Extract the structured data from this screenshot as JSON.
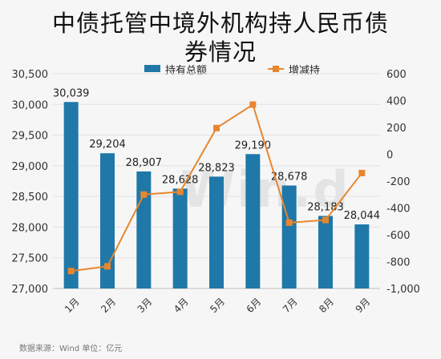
{
  "title_line1": "中债托管中境外机构持人民币债",
  "title_line2": "券情况",
  "source_text": "数据来源：Wind   单位：亿元",
  "watermark": "Win.d",
  "colors": {
    "bar": "#1f78a8",
    "line": "#e8862e",
    "grid": "#e2e2e2",
    "text": "#333333"
  },
  "chart_data": {
    "type": "bar+line",
    "categories": [
      "1月",
      "2月",
      "3月",
      "4月",
      "5月",
      "6月",
      "7月",
      "8月",
      "9月"
    ],
    "series": [
      {
        "name": "持有总额",
        "type": "bar",
        "axis": "left",
        "values": [
          30039,
          29204,
          28907,
          28628,
          28823,
          29190,
          28678,
          28183,
          28044
        ]
      },
      {
        "name": "增减持",
        "type": "line",
        "axis": "right",
        "values": [
          -870,
          -835,
          -300,
          -280,
          195,
          370,
          -510,
          -490,
          -140
        ]
      }
    ],
    "data_labels": [
      "30,039",
      "29,204",
      "28,907",
      "28,628",
      "28,823",
      "29,190",
      "28,678",
      "28,183",
      "28,044"
    ],
    "left_axis": {
      "min": 27000,
      "max": 30500,
      "ticks": [
        "27,000",
        "27,500",
        "28,000",
        "28,500",
        "29,000",
        "29,500",
        "30,000",
        "30,500"
      ]
    },
    "right_axis": {
      "min": -1000,
      "max": 600,
      "ticks": [
        "-1,000",
        "-800",
        "-600",
        "-400",
        "-200",
        "0",
        "200",
        "400",
        "600"
      ]
    },
    "legend": {
      "placement": "top",
      "entries": [
        "持有总额",
        "增减持"
      ]
    },
    "grid": true
  }
}
